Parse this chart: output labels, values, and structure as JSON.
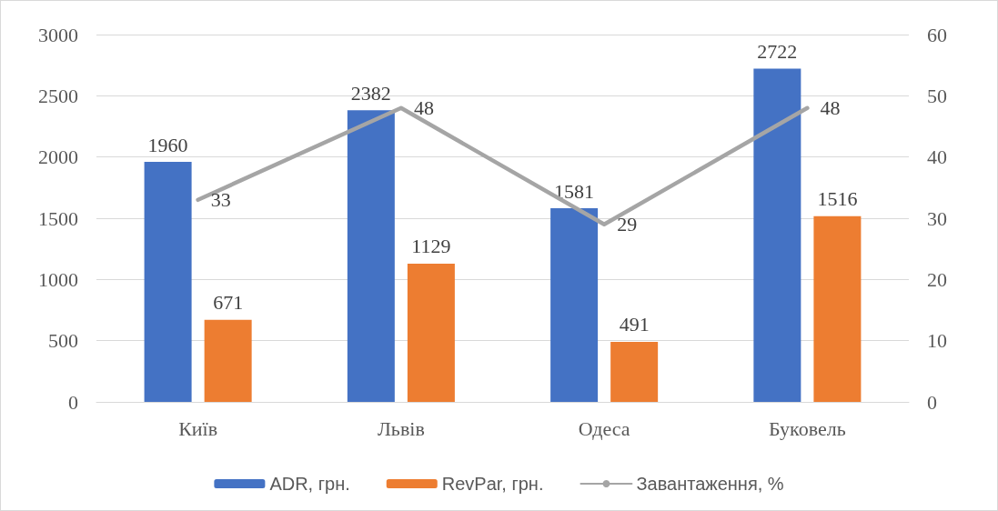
{
  "chart_data": {
    "type": "bar",
    "categories": [
      "Київ",
      "Львів",
      "Одеса",
      "Буковель"
    ],
    "series": [
      {
        "name": "ADR, грн.",
        "color": "#4472c4",
        "values": [
          1960,
          2382,
          1581,
          2722
        ]
      },
      {
        "name": "RevPar, грн.",
        "color": "#ed7d31",
        "values": [
          671,
          1129,
          491,
          1516
        ]
      },
      {
        "name": "Завантаження, %",
        "type": "line",
        "axis": "y2",
        "color": "#a5a5a5",
        "values": [
          33,
          48,
          29,
          48
        ]
      }
    ],
    "ylim": [
      0,
      3000
    ],
    "yticks": [
      0,
      500,
      1000,
      1500,
      2000,
      2500,
      3000
    ],
    "y2lim": [
      0,
      60
    ],
    "y2ticks": [
      0,
      10,
      20,
      30,
      40,
      50,
      60
    ],
    "data_labels": true,
    "grid": "y",
    "legend": "bottom",
    "marker": "none",
    "line_style": "solid"
  }
}
